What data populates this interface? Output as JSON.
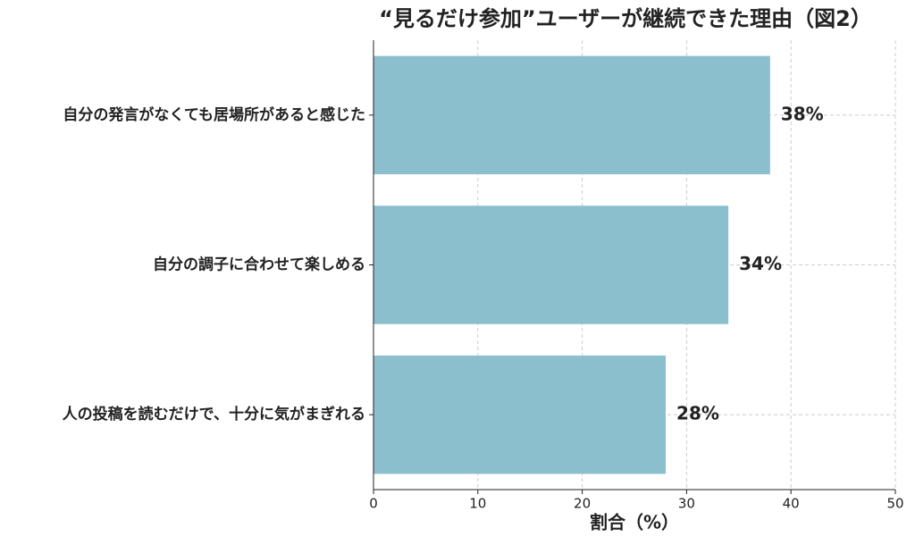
{
  "chart_data": {
    "type": "barh",
    "title": "“見るだけ参加”ユーザーが継続できた理由（図2）",
    "xlabel": "割合（%）",
    "categories": [
      "自分の発言がなくても居場所があると感じた",
      "自分の調子に合わせて楽しめる",
      "人の投稿を読むだけで、十分に気がまぎれる"
    ],
    "values": [
      38,
      34,
      28
    ],
    "value_labels": [
      "38%",
      "34%",
      "28%"
    ],
    "color": "#8bbfce",
    "xlim": [
      0,
      50
    ],
    "xticks": [
      0,
      10,
      20,
      30,
      40,
      50
    ],
    "grid": true
  }
}
